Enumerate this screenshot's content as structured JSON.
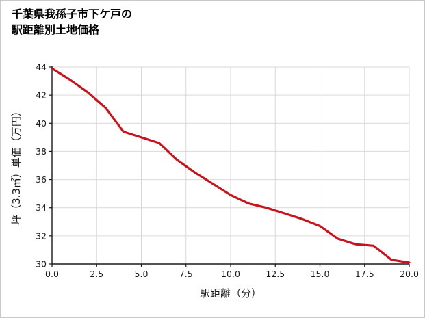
{
  "title": {
    "line1": "千葉県我孫子市下ケ戸の",
    "line2": "駅距離別土地価格"
  },
  "chart_data": {
    "type": "line",
    "title": "千葉県我孫子市下ケ戸の駅距離別土地価格",
    "xlabel": "駅距離（分）",
    "ylabel": "坪（3.3㎡）単価（万円）",
    "xlim": [
      0,
      20
    ],
    "ylim": [
      30,
      44
    ],
    "x_ticks": [
      0,
      2.5,
      5,
      7.5,
      10,
      12.5,
      15,
      17.5,
      20
    ],
    "x_tick_labels": [
      "0.0",
      "2.5",
      "5.0",
      "7.5",
      "10.0",
      "12.5",
      "15.0",
      "17.5",
      "20.0"
    ],
    "y_ticks": [
      30,
      32,
      34,
      36,
      38,
      40,
      42,
      44
    ],
    "y_tick_labels": [
      "30",
      "32",
      "34",
      "36",
      "38",
      "40",
      "42",
      "44"
    ],
    "x": [
      0,
      1,
      2,
      3,
      4,
      5,
      6,
      7,
      8,
      9,
      10,
      11,
      12,
      13,
      14,
      15,
      16,
      17,
      18,
      19,
      20
    ],
    "y": [
      43.9,
      43.1,
      42.2,
      41.1,
      39.4,
      39.0,
      38.6,
      37.4,
      36.5,
      35.7,
      34.9,
      34.3,
      34.0,
      33.6,
      33.2,
      32.7,
      31.8,
      31.4,
      31.3,
      30.3,
      30.1
    ],
    "grid": true,
    "legend_position": "none",
    "line_color": "#c9121c",
    "grid_color": "#d9d9d9",
    "axis_color": "#1a1a1a"
  }
}
